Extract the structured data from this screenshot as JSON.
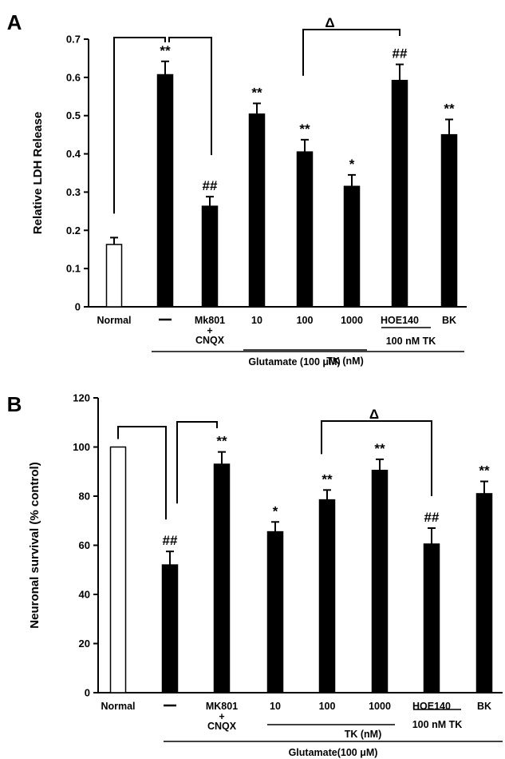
{
  "chart_data": [
    {
      "type": "bar",
      "panel_label": "A",
      "ylabel": "Relative LDH Release",
      "ylim": [
        0,
        0.7
      ],
      "yticks": [
        "0",
        "0.1",
        "0.2",
        "0.3",
        "0.4",
        "0.5",
        "0.6",
        "0.7"
      ],
      "categories": [
        "Normal",
        "—",
        "Mk801",
        "10",
        "100",
        "1000",
        "HOE140",
        "BK"
      ],
      "category_sublabels": [
        "",
        "",
        "+\nCNQX",
        "",
        "",
        "",
        "",
        ""
      ],
      "values": [
        0.163,
        0.607,
        0.263,
        0.504,
        0.405,
        0.315,
        0.592,
        0.45
      ],
      "errors": [
        0.018,
        0.035,
        0.025,
        0.028,
        0.032,
        0.03,
        0.042,
        0.04
      ],
      "bar_fill": [
        "#ffffff",
        "#000000",
        "#000000",
        "#000000",
        "#000000",
        "#000000",
        "#000000",
        "#000000"
      ],
      "significance": [
        "",
        "**",
        "##",
        "**",
        "**",
        "*",
        "##",
        "**"
      ],
      "group_labels": {
        "tk": "TK (nM)",
        "hoe": "100 nM TK",
        "glutamate": "Glutamate (100 μM)"
      },
      "comparison_marker": "Δ"
    },
    {
      "type": "bar",
      "panel_label": "B",
      "ylabel": "Neuronal survival (% control)",
      "ylim": [
        0,
        120
      ],
      "yticks": [
        "0",
        "20",
        "40",
        "60",
        "80",
        "100",
        "120"
      ],
      "categories": [
        "Normal",
        "—",
        "MK801",
        "10",
        "100",
        "1000",
        "HOE140",
        "BK"
      ],
      "category_sublabels": [
        "",
        "",
        "+\nCNQX",
        "",
        "",
        "",
        "",
        ""
      ],
      "values": [
        100,
        52,
        93,
        65.5,
        78.5,
        90.5,
        60.5,
        81
      ],
      "errors": [
        0,
        5.5,
        5.0,
        4.0,
        4.0,
        4.5,
        6.5,
        5.0
      ],
      "bar_fill": [
        "#ffffff",
        "#000000",
        "#000000",
        "#000000",
        "#000000",
        "#000000",
        "#000000",
        "#000000"
      ],
      "significance": [
        "",
        "##",
        "**",
        "*",
        "**",
        "**",
        "##",
        "**"
      ],
      "group_labels": {
        "tk": "TK (nM)",
        "hoe": "100 nM TK",
        "glutamate": "Glutamate(100 μM)"
      },
      "comparison_marker": "Δ"
    }
  ]
}
